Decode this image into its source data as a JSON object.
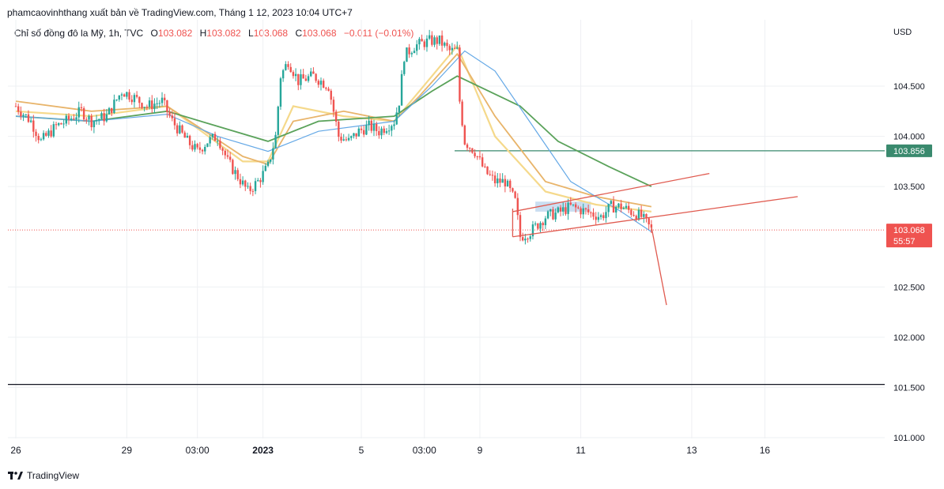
{
  "header": {
    "publisher_line": "phamcaovinhthang xuất bản về TradingView.com, Tháng 1 12, 2023 10:04 UTC+7"
  },
  "legend": {
    "symbol": "Chỉ số đồng đô la Mỹ, 1h, TVC",
    "o_label": "O",
    "o_value": "103.082",
    "h_label": "H",
    "h_value": "103.082",
    "l_label": "L",
    "l_value": "103.068",
    "c_label": "C",
    "c_value": "103.068",
    "change": "−0.011 (−0.01%)"
  },
  "currency": "USD",
  "brand": {
    "name": "TradingView",
    "logo_icon": "tradingview-logo-icon"
  },
  "colors": {
    "up": "#26a69a",
    "down": "#ef5350",
    "ema_fast": "#f5d98b",
    "ema_mid": "#e8b46a",
    "ema_green": "#5aa25a",
    "ema_blue": "#64a8e6",
    "trend": "#e05a4f",
    "horizontal_level": "#3a8a6e",
    "grid": "#eef0f3"
  },
  "chart_data": {
    "type": "candlestick",
    "y_axis": {
      "ticks": [
        "104.500",
        "104.000",
        "103.500",
        "102.500",
        "102.000",
        "101.500",
        "101.000"
      ],
      "tick_values": [
        104.5,
        104.0,
        103.5,
        102.5,
        102.0,
        101.5,
        101.0
      ],
      "range": [
        101.0,
        104.9
      ]
    },
    "x_axis": {
      "ticks": [
        "26",
        "29",
        "03:00",
        "2023",
        "5",
        "03:00",
        "9",
        "11",
        "13",
        "16"
      ],
      "tick_index": [
        0,
        44,
        72,
        98,
        137,
        162,
        184,
        224,
        268,
        297
      ],
      "range_index": [
        0,
        320
      ]
    },
    "price_labels": [
      {
        "value": 103.856,
        "text": "103.856",
        "color": "#3a8a6e"
      },
      {
        "value": 103.068,
        "text": "103.068",
        "sub": "55:57",
        "color": "#ef5350"
      }
    ],
    "levels": {
      "horizontal_level": 103.856,
      "last_price": 103.068,
      "black_line": 101.53
    },
    "close_path": [
      [
        0,
        104.3
      ],
      [
        6,
        104.15
      ],
      [
        10,
        103.95
      ],
      [
        16,
        104.1
      ],
      [
        20,
        104.15
      ],
      [
        26,
        104.25
      ],
      [
        30,
        104.15
      ],
      [
        36,
        104.2
      ],
      [
        42,
        104.45
      ],
      [
        46,
        104.4
      ],
      [
        52,
        104.3
      ],
      [
        58,
        104.35
      ],
      [
        62,
        104.15
      ],
      [
        68,
        103.95
      ],
      [
        72,
        103.85
      ],
      [
        76,
        103.95
      ],
      [
        80,
        104.0
      ],
      [
        84,
        103.75
      ],
      [
        88,
        103.6
      ],
      [
        92,
        103.45
      ],
      [
        96,
        103.55
      ],
      [
        100,
        103.7
      ],
      [
        103,
        104.0
      ],
      [
        105,
        104.6
      ],
      [
        108,
        104.75
      ],
      [
        112,
        104.55
      ],
      [
        118,
        104.6
      ],
      [
        124,
        104.5
      ],
      [
        128,
        104.0
      ],
      [
        132,
        103.95
      ],
      [
        136,
        104.05
      ],
      [
        140,
        104.1
      ],
      [
        144,
        104.05
      ],
      [
        150,
        104.15
      ],
      [
        152,
        104.35
      ],
      [
        154,
        104.8
      ],
      [
        158,
        104.9
      ],
      [
        164,
        104.95
      ],
      [
        168,
        104.95
      ],
      [
        172,
        104.85
      ],
      [
        175,
        104.85
      ],
      [
        176,
        104.35
      ],
      [
        178,
        103.95
      ],
      [
        182,
        103.85
      ],
      [
        186,
        103.65
      ],
      [
        190,
        103.55
      ],
      [
        194,
        103.55
      ],
      [
        198,
        103.35
      ],
      [
        200,
        103.0
      ],
      [
        204,
        103.05
      ],
      [
        210,
        103.2
      ],
      [
        216,
        103.25
      ],
      [
        220,
        103.3
      ],
      [
        226,
        103.25
      ],
      [
        232,
        103.2
      ],
      [
        236,
        103.3
      ],
      [
        240,
        103.3
      ],
      [
        244,
        103.25
      ],
      [
        248,
        103.2
      ],
      [
        252,
        103.07
      ]
    ],
    "emas": [
      {
        "key": "ema_fast",
        "points": [
          [
            0,
            104.25
          ],
          [
            30,
            104.2
          ],
          [
            60,
            104.3
          ],
          [
            90,
            103.75
          ],
          [
            100,
            103.75
          ],
          [
            110,
            104.3
          ],
          [
            130,
            104.2
          ],
          [
            150,
            104.15
          ],
          [
            160,
            104.45
          ],
          [
            175,
            104.9
          ],
          [
            190,
            104.0
          ],
          [
            210,
            103.45
          ],
          [
            230,
            103.32
          ],
          [
            252,
            103.25
          ]
        ]
      },
      {
        "key": "ema_mid",
        "points": [
          [
            0,
            104.35
          ],
          [
            30,
            104.25
          ],
          [
            60,
            104.3
          ],
          [
            90,
            103.8
          ],
          [
            100,
            103.72
          ],
          [
            110,
            104.15
          ],
          [
            130,
            104.25
          ],
          [
            150,
            104.15
          ],
          [
            160,
            104.4
          ],
          [
            175,
            104.82
          ],
          [
            190,
            104.2
          ],
          [
            210,
            103.55
          ],
          [
            230,
            103.4
          ],
          [
            252,
            103.3
          ]
        ]
      },
      {
        "key": "ema_green",
        "points": [
          [
            0,
            104.2
          ],
          [
            30,
            104.15
          ],
          [
            60,
            104.25
          ],
          [
            80,
            104.1
          ],
          [
            100,
            103.95
          ],
          [
            120,
            104.15
          ],
          [
            150,
            104.2
          ],
          [
            165,
            104.45
          ],
          [
            175,
            104.6
          ],
          [
            200,
            104.3
          ],
          [
            215,
            103.95
          ],
          [
            235,
            103.7
          ],
          [
            252,
            103.5
          ]
        ]
      },
      {
        "key": "ema_blue",
        "points": [
          [
            0,
            104.2
          ],
          [
            30,
            104.15
          ],
          [
            60,
            104.22
          ],
          [
            80,
            104.0
          ],
          [
            100,
            103.85
          ],
          [
            120,
            104.05
          ],
          [
            150,
            104.15
          ],
          [
            165,
            104.5
          ],
          [
            178,
            104.85
          ],
          [
            190,
            104.65
          ],
          [
            205,
            104.1
          ],
          [
            220,
            103.55
          ],
          [
            240,
            103.25
          ],
          [
            252,
            103.05
          ]
        ]
      }
    ],
    "trend_lines": [
      {
        "from": [
          197,
          103.0
        ],
        "to": [
          310,
          103.4
        ]
      },
      {
        "from": [
          197,
          103.25
        ],
        "to": [
          275,
          103.63
        ]
      },
      {
        "from": [
          197,
          103.28
        ],
        "to": [
          197,
          103.0
        ]
      },
      {
        "from": [
          252,
          103.1
        ],
        "to": [
          258,
          102.32
        ]
      }
    ],
    "shaded_box": {
      "x_from": 206,
      "x_to": 228,
      "y_from": 103.35,
      "y_to": 103.25
    }
  }
}
